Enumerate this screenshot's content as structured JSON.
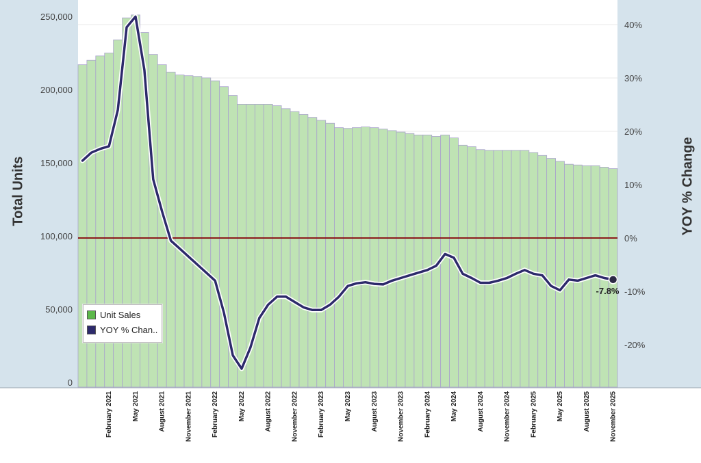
{
  "chart_data": {
    "type": "bar",
    "y_left_label": "Total Units",
    "y_right_label": "YOY % Change",
    "ylim_left": [
      0,
      250000
    ],
    "ylim_right": [
      -25,
      40
    ],
    "left_ticks": [
      {
        "v": 0,
        "label": "0"
      },
      {
        "v": 50000,
        "label": "50,000"
      },
      {
        "v": 100000,
        "label": "100,000"
      },
      {
        "v": 150000,
        "label": "150,000"
      },
      {
        "v": 200000,
        "label": "200,000"
      },
      {
        "v": 250000,
        "label": "250,000"
      }
    ],
    "right_ticks": [
      {
        "v": -20,
        "label": "-20%"
      },
      {
        "v": -10,
        "label": "-10%"
      },
      {
        "v": 0,
        "label": "0%"
      },
      {
        "v": 10,
        "label": "10%"
      },
      {
        "v": 20,
        "label": "20%"
      },
      {
        "v": 30,
        "label": "30%"
      },
      {
        "v": 40,
        "label": "40%"
      }
    ],
    "x_ticks": [
      {
        "month": "2021-02",
        "label": "February 2021"
      },
      {
        "month": "2021-05",
        "label": "May 2021"
      },
      {
        "month": "2021-08",
        "label": "August 2021"
      },
      {
        "month": "2021-11",
        "label": "November 2021"
      },
      {
        "month": "2022-02",
        "label": "February 2022"
      },
      {
        "month": "2022-05",
        "label": "May 2022"
      },
      {
        "month": "2022-08",
        "label": "August 2022"
      },
      {
        "month": "2022-11",
        "label": "November 2022"
      },
      {
        "month": "2023-02",
        "label": "February 2023"
      },
      {
        "month": "2023-05",
        "label": "May 2023"
      },
      {
        "month": "2023-08",
        "label": "August 2023"
      },
      {
        "month": "2023-11",
        "label": "November 2023"
      },
      {
        "month": "2024-02",
        "label": "February 2024"
      },
      {
        "month": "2024-05",
        "label": "May 2024"
      },
      {
        "month": "2024-08",
        "label": "August 2024"
      },
      {
        "month": "2024-11",
        "label": "November 2024"
      },
      {
        "month": "2025-02",
        "label": "February 2025"
      },
      {
        "month": "2025-05",
        "label": "May 2025"
      },
      {
        "month": "2025-08",
        "label": "August 2025"
      },
      {
        "month": "2025-11",
        "label": "November 2025"
      }
    ],
    "months": [
      "2020-11",
      "2020-12",
      "2021-01",
      "2021-02",
      "2021-03",
      "2021-04",
      "2021-05",
      "2021-06",
      "2021-07",
      "2021-08",
      "2021-09",
      "2021-10",
      "2021-11",
      "2021-12",
      "2022-01",
      "2022-02",
      "2022-03",
      "2022-04",
      "2022-05",
      "2022-06",
      "2022-07",
      "2022-08",
      "2022-09",
      "2022-10",
      "2022-11",
      "2022-12",
      "2023-01",
      "2023-02",
      "2023-03",
      "2023-04",
      "2023-05",
      "2023-06",
      "2023-07",
      "2023-08",
      "2023-09",
      "2023-10",
      "2023-11",
      "2023-12",
      "2024-01",
      "2024-02",
      "2024-03",
      "2024-04",
      "2024-05",
      "2024-06",
      "2024-07",
      "2024-08",
      "2024-09",
      "2024-10",
      "2024-11",
      "2024-12",
      "2025-01",
      "2025-02",
      "2025-03",
      "2025-04",
      "2025-05",
      "2025-06",
      "2025-07",
      "2025-08",
      "2025-09",
      "2025-10",
      "2025-11"
    ],
    "series": [
      {
        "name": "Unit Sales",
        "color": "#bfe3b4",
        "legend_color": "#5cb84a",
        "values": [
          217000,
          220000,
          223000,
          225000,
          234000,
          249000,
          251000,
          239000,
          224000,
          217000,
          212000,
          210000,
          209500,
          209000,
          208000,
          206000,
          202000,
          196000,
          190000,
          190000,
          190000,
          190000,
          189000,
          187000,
          185000,
          183000,
          181000,
          179000,
          177000,
          174000,
          173500,
          174000,
          174500,
          174000,
          173000,
          172000,
          171000,
          170000,
          169000,
          169000,
          168000,
          169000,
          167000,
          162000,
          161000,
          159000,
          158500,
          158500,
          158500,
          158500,
          158500,
          157000,
          155000,
          153000,
          151000,
          149000,
          148500,
          148000,
          148000,
          147000,
          146000
        ]
      },
      {
        "name": "YOY % Chan..",
        "color": "#2d2a6b",
        "values": [
          14.5,
          16.0,
          16.7,
          17.2,
          24.0,
          39.5,
          41.5,
          31.5,
          11.0,
          5.0,
          -0.5,
          -2.0,
          -3.5,
          -5.0,
          -6.5,
          -8.0,
          -14.0,
          -22.0,
          -24.5,
          -20.5,
          -15.0,
          -12.5,
          -11.0,
          -11.0,
          -12.0,
          -13.0,
          -13.5,
          -13.5,
          -12.5,
          -11.0,
          -9.0,
          -8.5,
          -8.3,
          -8.6,
          -8.7,
          -8.0,
          -7.5,
          -7.0,
          -6.5,
          -6.0,
          -5.2,
          -3.0,
          -3.7,
          -6.7,
          -7.5,
          -8.4,
          -8.4,
          -8.0,
          -7.5,
          -6.7,
          -6.0,
          -6.7,
          -7.0,
          -9.0,
          -9.8,
          -7.8,
          -8.0,
          -7.5,
          -7.0,
          -7.5,
          -7.8
        ]
      }
    ],
    "reference_line": {
      "axis": "right",
      "value": 0,
      "color": "#8b1a1a"
    },
    "end_label": "-7.8%",
    "legend": [
      {
        "label": "Unit Sales",
        "color": "#5cb84a"
      },
      {
        "label": "YOY % Chan..",
        "color": "#2d2a6b"
      }
    ],
    "legend_placement": "bottom-left",
    "grid": true
  }
}
